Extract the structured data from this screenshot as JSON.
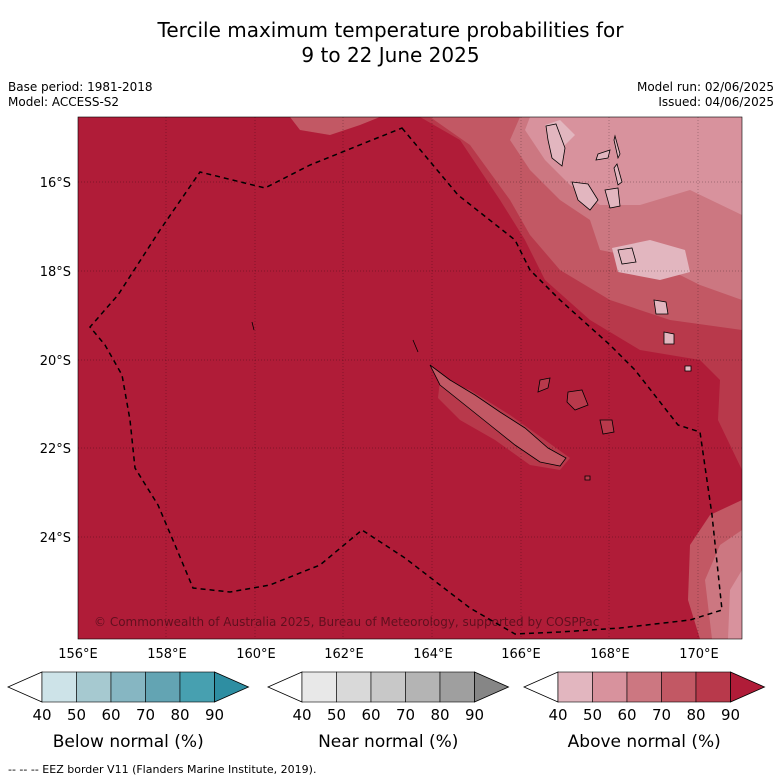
{
  "title_line1": "Tercile maximum temperature probabilities for",
  "title_line2": "9 to 22 June 2025",
  "base_period": "Base period: 1981-2018",
  "model": "Model: ACCESS-S2",
  "model_run": "Model run: 02/06/2025",
  "issued": "Issued: 04/06/2025",
  "lat_labels": [
    "16°S",
    "18°S",
    "20°S",
    "22°S",
    "24°S"
  ],
  "lon_labels": [
    "156°E",
    "158°E",
    "160°E",
    "162°E",
    "164°E",
    "166°E",
    "168°E",
    "170°E"
  ],
  "copyright": "© Commonwealth of Australia 2025, Bureau of Meteorology, supported by COSPPac",
  "colorbars": [
    {
      "label": "Below normal (%)",
      "ticks": [
        "40",
        "50",
        "60",
        "70",
        "80",
        "90"
      ],
      "colors": [
        "#ffffff",
        "#cde3e8",
        "#a6c9d0",
        "#86b6c2",
        "#63a4b3",
        "#47a0b0",
        "#2e8ea2"
      ]
    },
    {
      "label": "Near normal (%)",
      "ticks": [
        "40",
        "50",
        "60",
        "70",
        "80",
        "90"
      ],
      "colors": [
        "#ffffff",
        "#e8e8e8",
        "#d9d9d9",
        "#c8c8c8",
        "#b4b4b4",
        "#9f9f9f",
        "#868686"
      ]
    },
    {
      "label": "Above normal (%)",
      "ticks": [
        "40",
        "50",
        "60",
        "70",
        "80",
        "90"
      ],
      "colors": [
        "#ffffff",
        "#e2b6bf",
        "#d8929d",
        "#cc7781",
        "#c25864",
        "#b8394b",
        "#b01c38"
      ]
    }
  ],
  "eez_note": "--  --  -- EEZ border V11 (Flanders Marine Institute, 2019).",
  "colors": {
    "base_red": "#b01c38",
    "band80": "#b8394b",
    "band70": "#c25864",
    "band60": "#cc7781",
    "band50": "#d8929d"
  }
}
